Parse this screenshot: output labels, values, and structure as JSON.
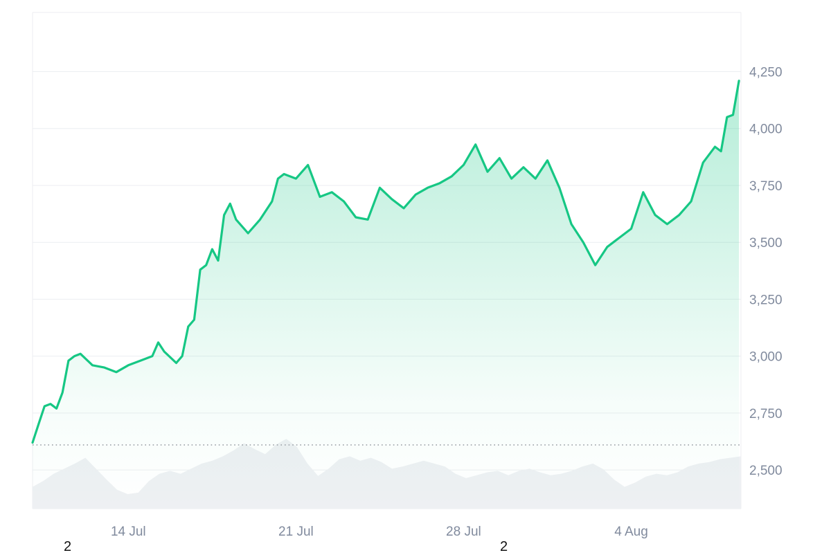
{
  "chart_data": {
    "type": "area",
    "title": "",
    "xlabel": "",
    "ylabel": "",
    "ylim": [
      2330,
      4510
    ],
    "xlim": [
      "2024-07-10",
      "2024-08-08"
    ],
    "y_ticks": [
      "2,500",
      "2,750",
      "3,000",
      "3,250",
      "3,500",
      "3,750",
      "4,000",
      "4,250"
    ],
    "x_ticks": [
      "14 Jul",
      "21 Jul",
      "28 Jul",
      "4 Aug"
    ],
    "x_tick_dates": [
      "2024-07-14",
      "2024-07-21",
      "2024-07-28",
      "2024-08-04"
    ],
    "baseline": 2610,
    "grid": "horizontal",
    "legend": "none",
    "colors": {
      "line": "#16c784",
      "fill_top": "#16c784",
      "volume": "#eef0f3",
      "grid": "#eceef1",
      "baseline_dots": "#9aa0a6",
      "tick_text": "#808a9d"
    },
    "series": [
      {
        "x": [
          "2024-07-10 00:00",
          "2024-07-10 06:00",
          "2024-07-10 12:00",
          "2024-07-10 18:00",
          "2024-07-11 00:00",
          "2024-07-11 06:00",
          "2024-07-11 12:00",
          "2024-07-11 18:00",
          "2024-07-12 00:00",
          "2024-07-12 12:00",
          "2024-07-13 00:00",
          "2024-07-13 12:00",
          "2024-07-14 00:00",
          "2024-07-14 12:00",
          "2024-07-15 00:00",
          "2024-07-15 06:00",
          "2024-07-15 12:00",
          "2024-07-16 00:00",
          "2024-07-16 06:00",
          "2024-07-16 12:00",
          "2024-07-16 18:00",
          "2024-07-17 00:00",
          "2024-07-17 06:00",
          "2024-07-17 12:00",
          "2024-07-17 18:00",
          "2024-07-18 00:00",
          "2024-07-18 06:00",
          "2024-07-18 12:00",
          "2024-07-19 00:00",
          "2024-07-19 12:00",
          "2024-07-20 00:00",
          "2024-07-20 06:00",
          "2024-07-20 12:00",
          "2024-07-21 00:00",
          "2024-07-21 12:00",
          "2024-07-22 00:00",
          "2024-07-22 12:00",
          "2024-07-23 00:00",
          "2024-07-23 12:00",
          "2024-07-24 00:00",
          "2024-07-24 12:00",
          "2024-07-25 00:00",
          "2024-07-25 12:00",
          "2024-07-26 00:00",
          "2024-07-26 12:00",
          "2024-07-27 00:00",
          "2024-07-27 12:00",
          "2024-07-28 00:00",
          "2024-07-28 12:00",
          "2024-07-29 00:00",
          "2024-07-29 12:00",
          "2024-07-30 00:00",
          "2024-07-30 12:00",
          "2024-07-31 00:00",
          "2024-07-31 12:00",
          "2024-08-01 00:00",
          "2024-08-01 12:00",
          "2024-08-02 00:00",
          "2024-08-02 12:00",
          "2024-08-03 00:00",
          "2024-08-03 12:00",
          "2024-08-04 00:00",
          "2024-08-04 12:00",
          "2024-08-05 00:00",
          "2024-08-05 12:00",
          "2024-08-06 00:00",
          "2024-08-06 12:00",
          "2024-08-07 00:00",
          "2024-08-07 12:00",
          "2024-08-07 18:00",
          "2024-08-08 00:00",
          "2024-08-08 06:00",
          "2024-08-08 12:00"
        ],
        "values": [
          2620,
          2700,
          2780,
          2790,
          2770,
          2840,
          2980,
          3000,
          3010,
          2960,
          2950,
          2930,
          2960,
          2980,
          3000,
          3060,
          3020,
          2970,
          3000,
          3130,
          3160,
          3380,
          3400,
          3470,
          3420,
          3620,
          3670,
          3600,
          3540,
          3600,
          3680,
          3780,
          3800,
          3780,
          3840,
          3700,
          3720,
          3680,
          3610,
          3600,
          3740,
          3690,
          3650,
          3710,
          3740,
          3760,
          3790,
          3840,
          3930,
          3810,
          3870,
          3780,
          3830,
          3780,
          3860,
          3740,
          3580,
          3500,
          3400,
          3480,
          3520,
          3560,
          3720,
          3620,
          3580,
          3620,
          3680,
          3850,
          3920,
          3900,
          4050,
          4060,
          4210
        ]
      }
    ],
    "volume": [
      0.3,
      0.38,
      0.48,
      0.55,
      0.62,
      0.7,
      0.55,
      0.4,
      0.26,
      0.2,
      0.22,
      0.38,
      0.48,
      0.52,
      0.48,
      0.55,
      0.62,
      0.66,
      0.72,
      0.8,
      0.9,
      0.82,
      0.75,
      0.88,
      0.96,
      0.85,
      0.62,
      0.45,
      0.55,
      0.68,
      0.72,
      0.66,
      0.7,
      0.64,
      0.55,
      0.58,
      0.62,
      0.66,
      0.62,
      0.58,
      0.48,
      0.42,
      0.46,
      0.5,
      0.52,
      0.46,
      0.52,
      0.55,
      0.5,
      0.46,
      0.48,
      0.52,
      0.58,
      0.62,
      0.54,
      0.4,
      0.3,
      0.36,
      0.44,
      0.48,
      0.46,
      0.5,
      0.58,
      0.62,
      0.64,
      0.68,
      0.7,
      0.72
    ]
  },
  "stray_labels": [
    "2",
    "2"
  ]
}
